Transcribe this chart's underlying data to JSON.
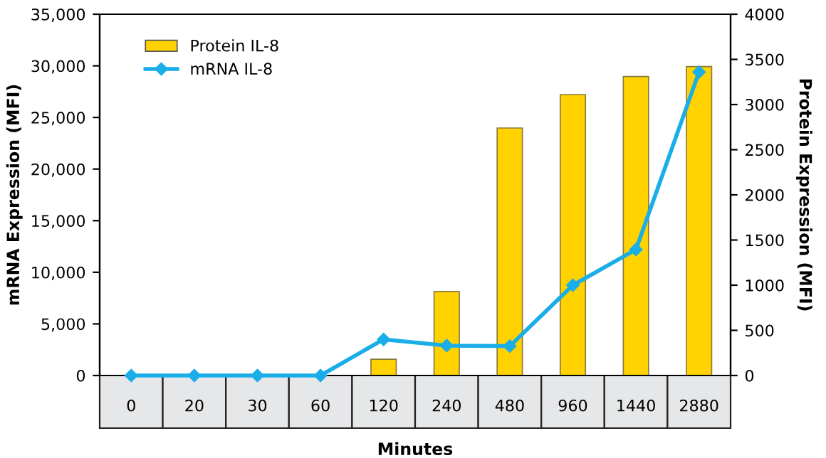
{
  "chart_data": {
    "type": "bar",
    "xlabel": "Minutes",
    "ylabel": "mRNA Expression (MFI)",
    "y2label": "Protein Expression (MFI)",
    "categories": [
      "0",
      "20",
      "30",
      "60",
      "120",
      "240",
      "480",
      "960",
      "1440",
      "2880"
    ],
    "series": [
      {
        "name": "Protein IL-8",
        "axis": "y2",
        "color": "#ffd200",
        "values": [
          null,
          null,
          null,
          null,
          180,
          930,
          2740,
          3110,
          3310,
          3420
        ]
      },
      {
        "name": "mRNA IL-8",
        "type": "line",
        "axis": "y",
        "color": "#1aaee8",
        "marker": "diamond",
        "values": [
          0,
          0,
          0,
          0,
          3500,
          2900,
          2850,
          8750,
          12200,
          29400
        ]
      }
    ],
    "ylim": [
      0,
      35000
    ],
    "yticks": [
      {
        "value": 0,
        "label": "0"
      },
      {
        "value": 5000,
        "label": "5,000"
      },
      {
        "value": 10000,
        "label": "10,000"
      },
      {
        "value": 15000,
        "label": "15,000"
      },
      {
        "value": 20000,
        "label": "20,000"
      },
      {
        "value": 25000,
        "label": "25,000"
      },
      {
        "value": 30000,
        "label": "30,000"
      },
      {
        "value": 35000,
        "label": "35,000"
      }
    ],
    "y2lim": [
      0,
      4000
    ],
    "y2ticks": [
      0,
      500,
      1000,
      1500,
      2000,
      2500,
      3000,
      3500,
      4000
    ],
    "grid": false,
    "legend": "top left"
  }
}
